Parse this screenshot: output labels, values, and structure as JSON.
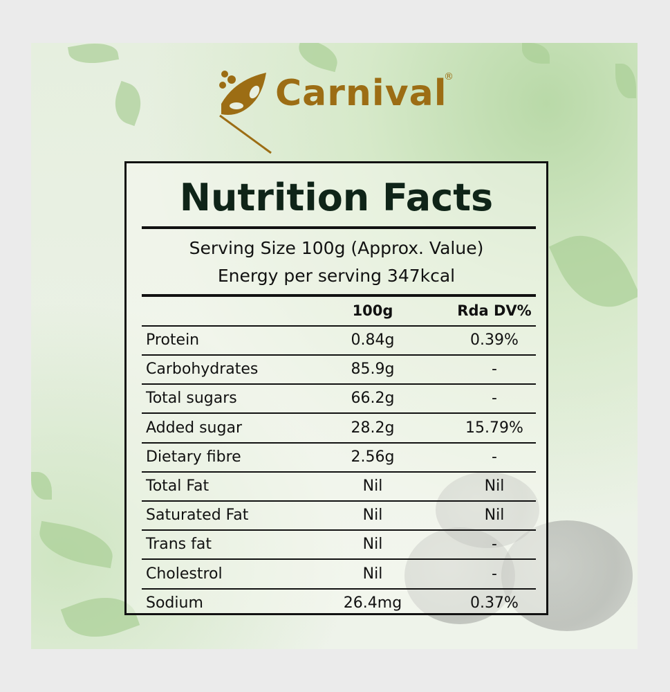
{
  "brand": {
    "name": "Carnival",
    "registered": "®",
    "color": "#9c6d14"
  },
  "label": {
    "title": "Nutrition Facts",
    "serving_size": "Serving Size 100g (Approx. Value)",
    "energy": "Energy per serving 347kcal",
    "columns": [
      "",
      "100g",
      "Rda DV%"
    ],
    "rows": [
      {
        "nutrient": "Protein",
        "amount": "0.84g",
        "dv": "0.39%"
      },
      {
        "nutrient": "Carbohydrates",
        "amount": "85.9g",
        "dv": "-"
      },
      {
        "nutrient": "Total sugars",
        "amount": "66.2g",
        "dv": "-"
      },
      {
        "nutrient": "Added sugar",
        "amount": "28.2g",
        "dv": "15.79%"
      },
      {
        "nutrient": "Dietary fibre",
        "amount": "2.56g",
        "dv": "-"
      },
      {
        "nutrient": "Total Fat",
        "amount": "Nil",
        "dv": "Nil"
      },
      {
        "nutrient": "Saturated Fat",
        "amount": "Nil",
        "dv": "Nil"
      },
      {
        "nutrient": "Trans fat",
        "amount": "Nil",
        "dv": "-"
      },
      {
        "nutrient": "Cholestrol",
        "amount": "Nil",
        "dv": "-"
      },
      {
        "nutrient": "Sodium",
        "amount": "26.4mg",
        "dv": "0.37%"
      }
    ]
  }
}
